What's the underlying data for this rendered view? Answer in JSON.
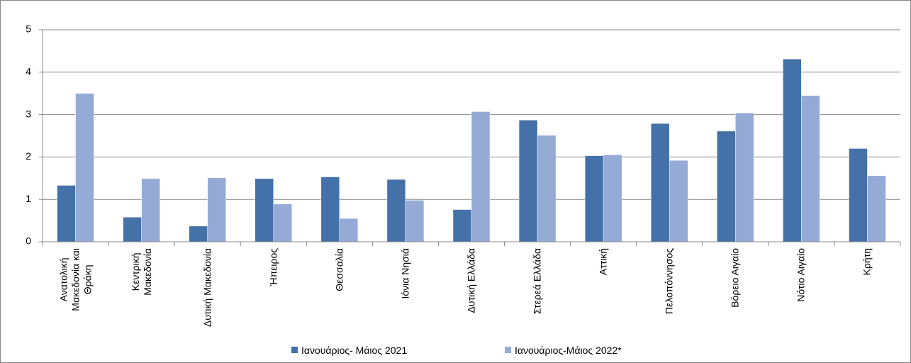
{
  "chart_data": {
    "type": "bar",
    "categories": [
      "Ανατολική\nΜακεδονία και\nΘράκη",
      "Κεντρική\nΜακεδονία",
      "Δυτική Μακεδονία",
      "Ήπειρος",
      "Θεσσαλία",
      "Ιόνια Νησιά",
      "Δυτική Ελλάδα",
      "Στερεά Ελλάδα",
      "Αττική",
      "Πελοπόννησος",
      "Βόρειο Αιγαίο",
      "Νότιο Αιγαίο",
      "Κρήτη"
    ],
    "series": [
      {
        "name": "Ιανουάριος- Μάιος 2021",
        "color": "#4471a7",
        "values": [
          1.33,
          0.58,
          0.37,
          1.49,
          1.53,
          1.47,
          0.76,
          2.87,
          2.03,
          2.79,
          2.61,
          4.31,
          2.2
        ]
      },
      {
        "name": "Ιανουάριος-Μάιος 2022*",
        "color": "#95abd6",
        "values": [
          3.5,
          1.49,
          1.51,
          0.89,
          0.55,
          0.98,
          3.07,
          2.51,
          2.05,
          1.92,
          3.04,
          3.45,
          1.56
        ]
      }
    ],
    "ylim": [
      0,
      5
    ],
    "yticks": [
      0,
      1,
      2,
      3,
      4,
      5
    ],
    "grid": true
  }
}
